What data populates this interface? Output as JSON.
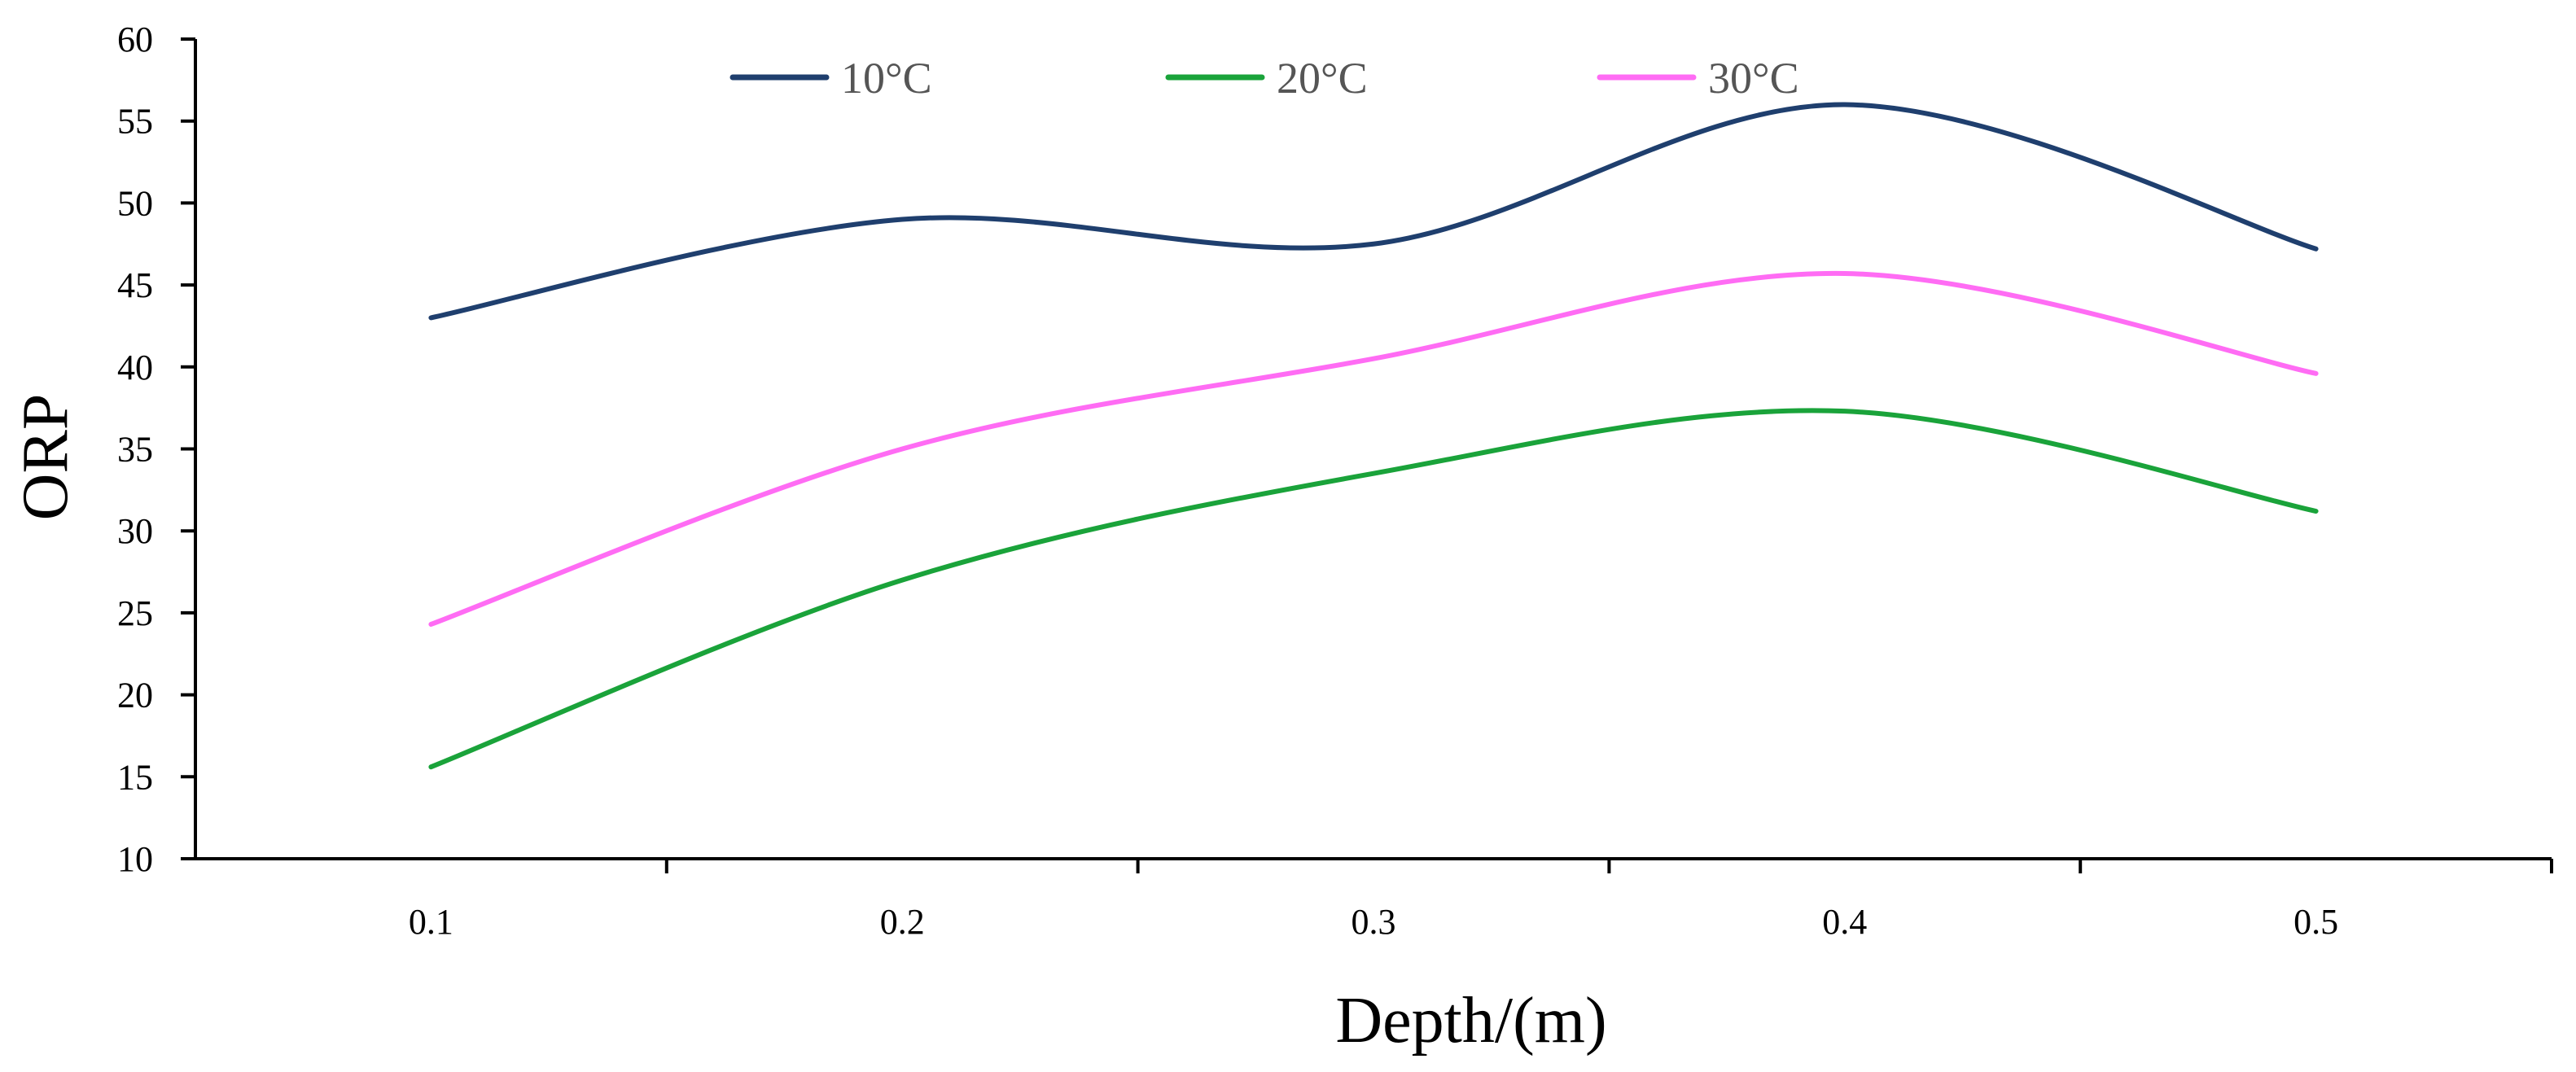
{
  "chart_data": {
    "type": "line",
    "title": "",
    "xlabel": "Depth/(m)",
    "ylabel": "ORP",
    "x": [
      0.1,
      0.2,
      0.3,
      0.4,
      0.5
    ],
    "x_tick_labels": [
      "0.1",
      "0.2",
      "0.3",
      "0.4",
      "0.5"
    ],
    "xlim": [
      0.05,
      0.55
    ],
    "x_minor_ticks": [
      0.15,
      0.25,
      0.35,
      0.45,
      0.55
    ],
    "ylim": [
      10,
      60
    ],
    "y_ticks": [
      10,
      15,
      20,
      25,
      30,
      35,
      40,
      45,
      50,
      55,
      60
    ],
    "y_tick_labels": [
      "10",
      "15",
      "20",
      "25",
      "30",
      "35",
      "40",
      "45",
      "50",
      "55",
      "60"
    ],
    "grid": false,
    "smooth": true,
    "legend_position": "top",
    "series": [
      {
        "name": "10°C",
        "color": "#1f3f6e",
        "values": [
          43.0,
          49.0,
          47.5,
          56.0,
          47.2
        ]
      },
      {
        "name": "20°C",
        "color": "#1aa33a",
        "values": [
          15.6,
          27.0,
          33.5,
          37.3,
          31.2
        ]
      },
      {
        "name": "30°C",
        "color": "#ff6cf4",
        "values": [
          24.3,
          35.0,
          40.5,
          45.7,
          39.6
        ]
      }
    ]
  }
}
